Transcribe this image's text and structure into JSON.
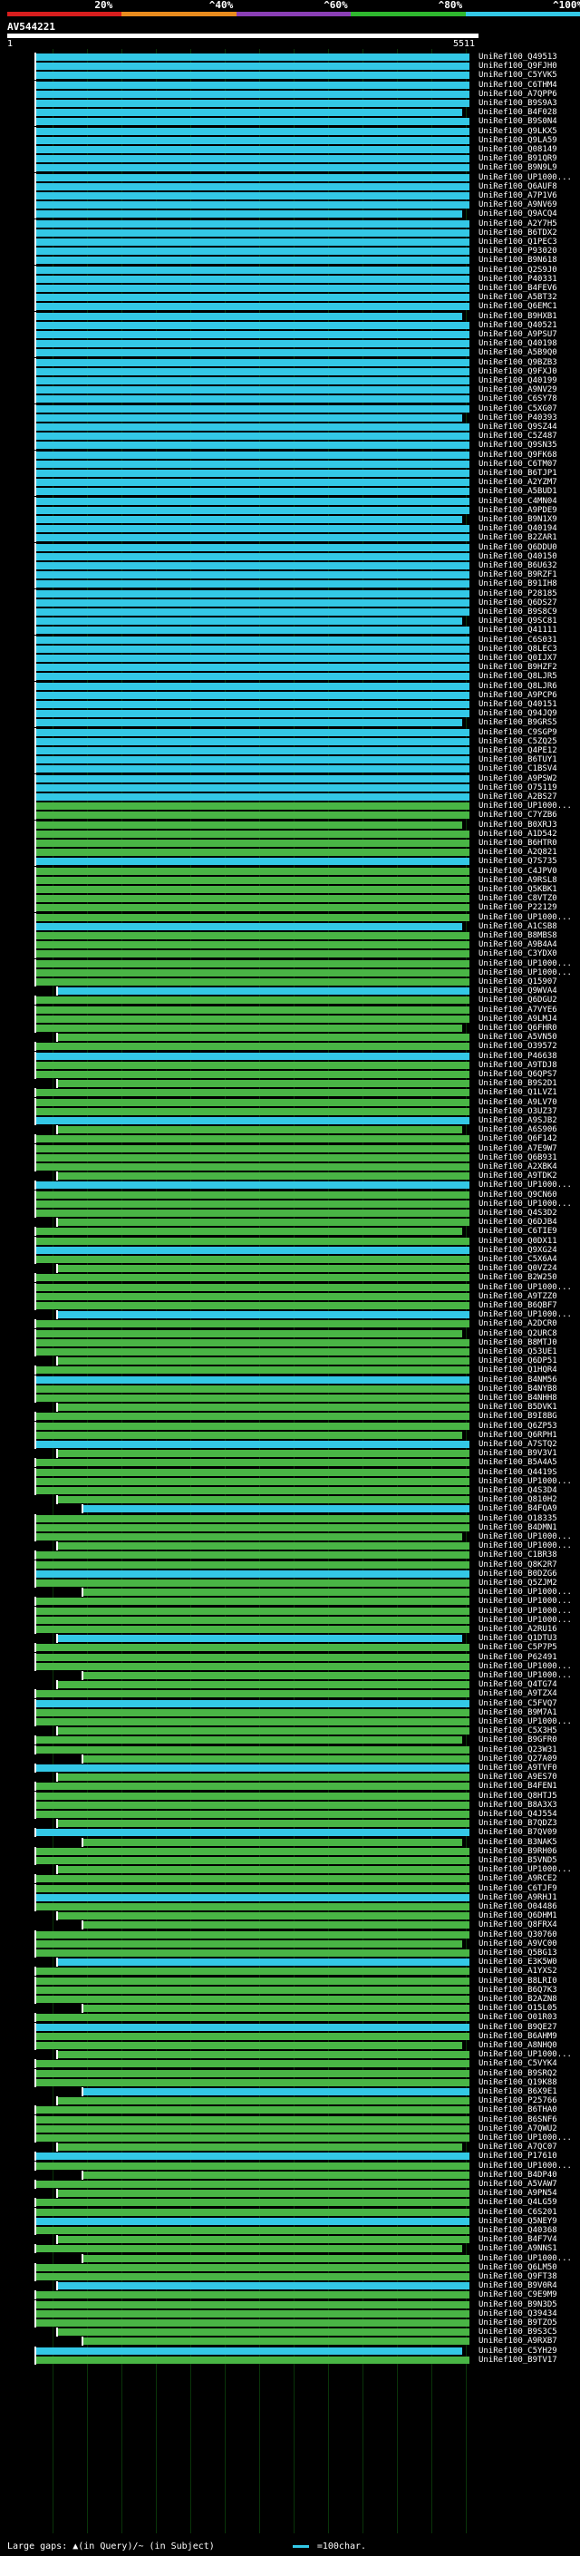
{
  "scale": {
    "labels": [
      "20%",
      "^40%",
      "^60%",
      "^80%",
      "^100%"
    ],
    "colors": [
      "#d81e1e",
      "#e98c1e",
      "#8a3fb5",
      "#2fb82f",
      "#33c8e6"
    ]
  },
  "query": {
    "title": "AV544221",
    "start": "1",
    "end": "5511"
  },
  "colors": {
    "cyan": "#33c8e6",
    "green": "#49b545",
    "grid": "#0a3a0a"
  },
  "hits": [
    "UniRef100_Q49513",
    "UniRef100_Q9FJH0",
    "UniRef100_C5YVK5",
    "UniRef100_C6THM4",
    "UniRef100_A7QPP6",
    "UniRef100_B9S9A3",
    "UniRef100_B4F028",
    "UniRef100_B9S0N4",
    "UniRef100_Q9LKX5",
    "UniRef100_Q9LA59",
    "UniRef100_Q08149",
    "UniRef100_B91QR9",
    "UniRef100_B9N9L9",
    "UniRef100_UP1000...",
    "UniRef100_Q6AUF8",
    "UniRef100_A7P1V6",
    "UniRef100_A9NV69",
    "UniRef100_Q9ACQ4",
    "UniRef100_A2Y7H5",
    "UniRef100_B6TDX2",
    "UniRef100_Q1PEC3",
    "UniRef100_P93020",
    "UniRef100_B9N618",
    "UniRef100_Q2S9J0",
    "UniRef100_P40331",
    "UniRef100_B4FEV6",
    "UniRef100_A5BT32",
    "UniRef100_Q6EMC1",
    "UniRef100_B9HXB1",
    "UniRef100_Q40521",
    "UniRef100_A9PSU7",
    "UniRef100_Q40198",
    "UniRef100_A5B9Q0",
    "UniRef100_Q9BZB3",
    "UniRef100_Q9FXJ0",
    "UniRef100_Q40199",
    "UniRef100_A9NV29",
    "UniRef100_C6SY78",
    "UniRef100_C5XG07",
    "UniRef100_P40393",
    "UniRef100_Q9SZ44",
    "UniRef100_C5Z487",
    "UniRef100_Q9SN35",
    "UniRef100_Q9FK68",
    "UniRef100_C6TM07",
    "UniRef100_B6TJP1",
    "UniRef100_A2YZM7",
    "UniRef100_A5BUD1",
    "UniRef100_C4MN04",
    "UniRef100_A9PDE9",
    "UniRef100_B9N1X9",
    "UniRef100_Q40194",
    "UniRef100_B2ZAR1",
    "UniRef100_Q6DDU0",
    "UniRef100_Q40150",
    "UniRef100_B6U632",
    "UniRef100_B9RZF1",
    "UniRef100_B91IH8",
    "UniRef100_P28185",
    "UniRef100_Q6DS27",
    "UniRef100_B9S8C9",
    "UniRef100_Q9SC81",
    "UniRef100_Q41111",
    "UniRef100_C6S031",
    "UniRef100_Q8LEC3",
    "UniRef100_Q0IJX7",
    "UniRef100_B9HZF2",
    "UniRef100_Q8LJR5",
    "UniRef100_Q8LJR6",
    "UniRef100_A9PCP6",
    "UniRef100_Q40151",
    "UniRef100_Q94JQ9",
    "UniRef100_B9GRS5",
    "UniRef100_C9SGP9",
    "UniRef100_C5ZQ25",
    "UniRef100_Q4PE12",
    "UniRef100_B6TUY1",
    "UniRef100_C1BSV4",
    "UniRef100_A9PSW2",
    "UniRef100_O75119",
    "UniRef100_A2BS27",
    "UniRef100_UP1000...",
    "UniRef100_C7YZB6",
    "UniRef100_B0XRJ3",
    "UniRef100_A1D542",
    "UniRef100_B6HTR0",
    "UniRef100_A2Q821",
    "UniRef100_Q7S735",
    "UniRef100_C4JPV0",
    "UniRef100_A9RSL8",
    "UniRef100_Q5KBK1",
    "UniRef100_C8VTZ0",
    "UniRef100_P22129",
    "UniRef100_UP1000...",
    "UniRef100_A1CSB8",
    "UniRef100_B8MBS8",
    "UniRef100_A9B4A4",
    "UniRef100_C3YDX0",
    "UniRef100_UP1000...",
    "UniRef100_UP1000...",
    "UniRef100_Q15907",
    "UniRef100_Q9WVA4",
    "UniRef100_Q6DGU2",
    "UniRef100_A7VYE6",
    "UniRef100_A9LMJ4",
    "UniRef100_Q6FHR0",
    "UniRef100_A5VN50",
    "UniRef100_O39572",
    "UniRef100_P46638",
    "UniRef100_A9TDJ8",
    "UniRef100_Q6QPS7",
    "UniRef100_B9S2D1",
    "UniRef100_Q1LVZ1",
    "UniRef100_A9LV70",
    "UniRef100_O3UZ37",
    "UniRef100_A9SJB2",
    "UniRef100_A6S906",
    "UniRef100_Q6F142",
    "UniRef100_A7E9W7",
    "UniRef100_Q6B931",
    "UniRef100_A2XBK4",
    "UniRef100_A9TDK2",
    "UniRef100_UP1000...",
    "UniRef100_Q9CN60",
    "UniRef100_UP1000...",
    "UniRef100_Q4S3D2",
    "UniRef100_Q6DJB4",
    "UniRef100_C6TIE9",
    "UniRef100_Q0DX11",
    "UniRef100_Q9XG24",
    "UniRef100_C5X6A4",
    "UniRef100_Q0VZ24",
    "UniRef100_B2W250",
    "UniRef100_UP1000...",
    "UniRef100_A9TZZ0",
    "UniRef100_B6QBF7",
    "UniRef100_UP1000...",
    "UniRef100_A2DCR0",
    "UniRef100_Q2URC8",
    "UniRef100_B8MTJ0",
    "UniRef100_Q53UE1",
    "UniRef100_Q6DP51",
    "UniRef100_Q1HQR4",
    "UniRef100_B4NM56",
    "UniRef100_B4NYB8",
    "UniRef100_B4NHH8",
    "UniRef100_B5DVK1",
    "UniRef100_B9I8BG",
    "UniRef100_Q6ZP53",
    "UniRef100_Q6RPH1",
    "UniRef100_A7STQ2",
    "UniRef100_B9V3V1",
    "UniRef100_B5A4A5",
    "UniRef100_Q4419S",
    "UniRef100_UP1000...",
    "UniRef100_Q4S3D4",
    "UniRef100_Q810H2",
    "UniRef100_B4FQA9",
    "UniRef100_O18335",
    "UniRef100_B4DMN1",
    "UniRef100_UP1000...",
    "UniRef100_UP1000...",
    "UniRef100_C1BR38",
    "UniRef100_Q8K2R7",
    "UniRef100_B0DZG6",
    "UniRef100_Q5ZJM2",
    "UniRef100_UP1000...",
    "UniRef100_UP1000...",
    "UniRef100_UP1000...",
    "UniRef100_UP1000...",
    "UniRef100_A2RU16",
    "UniRef100_Q1DTU3",
    "UniRef100_C5P7P5",
    "UniRef100_P62491",
    "UniRef100_UP1000...",
    "UniRef100_UP1000...",
    "UniRef100_Q4TG74",
    "UniRef100_A9TZX4",
    "UniRef100_C5FVQ7",
    "UniRef100_B9M7A1",
    "UniRef100_UP1000...",
    "UniRef100_C5X3H5",
    "UniRef100_B9GFR0",
    "UniRef100_Q23W31",
    "UniRef100_Q27A09",
    "UniRef100_A9TVF0",
    "UniRef100_A9ES70",
    "UniRef100_B4FEN1",
    "UniRef100_Q8HTJ5",
    "UniRef100_B8A3X3",
    "UniRef100_Q4J554",
    "UniRef100_B7QDZ3",
    "UniRef100_B7QV09",
    "UniRef100_B3NAK5",
    "UniRef100_B9RH06",
    "UniRef100_B5VND5",
    "UniRef100_UP1000...",
    "UniRef100_A9RCE2",
    "UniRef100_C6TJF9",
    "UniRef100_A9RHJ1",
    "UniRef100_O04486",
    "UniRef100_Q6DHM1",
    "UniRef100_Q8FRX4",
    "UniRef100_Q30760",
    "UniRef100_A9VC00",
    "UniRef100_Q5BG13",
    "UniRef100_E3K5W0",
    "UniRef100_A1YXS2",
    "UniRef100_B8LRI0",
    "UniRef100_B6Q7K3",
    "UniRef100_B2AZN8",
    "UniRef100_O15L05",
    "UniRef100_O01R03",
    "UniRef100_B9QE27",
    "UniRef100_B6AHM9",
    "UniRef100_A8NHQ0",
    "UniRef100_UP1000...",
    "UniRef100_C5VYK4",
    "UniRef100_B9SRQ2",
    "UniRef100_Q19K88",
    "UniRef100_B6X9E1",
    "UniRef100_P25766",
    "UniRef100_B6THA0",
    "UniRef100_B6SNF6",
    "UniRef100_A7QWU2",
    "UniRef100_UP1000...",
    "UniRef100_A7QC07",
    "UniRef100_P17610",
    "UniRef100_UP1000...",
    "UniRef100_B4DP40",
    "UniRef100_A5VAW7",
    "UniRef100_A9PN54",
    "UniRef100_Q4LG59",
    "UniRef100_C6S201",
    "UniRef100_Q5NEY9",
    "UniRef100_Q40368",
    "UniRef100_B4F7V4",
    "UniRef100_A9NNS1",
    "UniRef100_UP1000...",
    "UniRef100_Q6LM50",
    "UniRef100_Q9FT38",
    "UniRef100_B9V0R4",
    "UniRef100_C9E9M9",
    "UniRef100_B9N3D5",
    "UniRef100_Q39434",
    "UniRef100_B9TZO5",
    "UniRef100_B9S3C5",
    "UniRef100_A9RXB7",
    "UniRef100_C5YH29",
    "UniRef100_B9TV17"
  ],
  "legend": {
    "gaps": "Large gaps: ▲(in Query)/~ (in Subject)",
    "scale_note": "=100char."
  }
}
